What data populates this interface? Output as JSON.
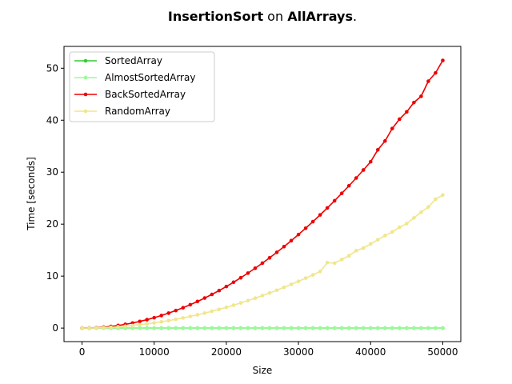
{
  "chart_data": {
    "type": "line",
    "title": {
      "algorithm": "InsertionSort",
      "connector": " on ",
      "dataset": "AllArrays",
      "suffix": "."
    },
    "xlabel": "Size",
    "ylabel": "Time [seconds]",
    "xlim": [
      -2500,
      52500
    ],
    "ylim": [
      -2.6,
      54.2
    ],
    "xticks": [
      0,
      10000,
      20000,
      30000,
      40000,
      50000
    ],
    "yticks": [
      0,
      10,
      20,
      30,
      40,
      50
    ],
    "legend_position": "top-left",
    "x": [
      0,
      1000,
      2000,
      3000,
      4000,
      5000,
      6000,
      7000,
      8000,
      9000,
      10000,
      11000,
      12000,
      13000,
      14000,
      15000,
      16000,
      17000,
      18000,
      19000,
      20000,
      21000,
      22000,
      23000,
      24000,
      25000,
      26000,
      27000,
      28000,
      29000,
      30000,
      31000,
      32000,
      33000,
      34000,
      35000,
      36000,
      37000,
      38000,
      39000,
      40000,
      41000,
      42000,
      43000,
      44000,
      45000,
      46000,
      47000,
      48000,
      49000,
      50000
    ],
    "series": [
      {
        "name": "SortedArray",
        "color": "#33cc33",
        "values": [
          0,
          0,
          0,
          0,
          0,
          0,
          0,
          0,
          0,
          0,
          0,
          0,
          0,
          0,
          0,
          0,
          0,
          0,
          0,
          0,
          0,
          0,
          0,
          0,
          0,
          0,
          0,
          0,
          0,
          0,
          0,
          0,
          0,
          0,
          0,
          0,
          0,
          0,
          0,
          0,
          0,
          0,
          0,
          0,
          0,
          0,
          0,
          0,
          0,
          0,
          0
        ]
      },
      {
        "name": "AlmostSortedArray",
        "color": "#98fb98",
        "values": [
          0,
          0,
          0,
          0,
          0,
          0,
          0,
          0,
          0,
          0,
          0,
          0,
          0,
          0,
          0,
          0,
          0,
          0,
          0,
          0,
          0,
          0,
          0,
          0,
          0,
          0,
          0,
          0,
          0,
          0,
          0,
          0,
          0,
          0,
          0,
          0,
          0,
          0,
          0,
          0,
          0,
          0,
          0,
          0,
          0,
          0,
          0,
          0,
          0,
          0,
          0
        ]
      },
      {
        "name": "BackSortedArray",
        "color": "#ee0000",
        "values": [
          0,
          0.02,
          0.08,
          0.18,
          0.32,
          0.5,
          0.72,
          0.98,
          1.28,
          1.62,
          2.0,
          2.42,
          2.88,
          3.38,
          3.92,
          4.5,
          5.12,
          5.78,
          6.48,
          7.22,
          8.0,
          8.82,
          9.68,
          10.58,
          11.52,
          12.5,
          13.52,
          14.58,
          15.68,
          16.82,
          18.0,
          19.22,
          20.48,
          21.78,
          23.12,
          24.5,
          25.92,
          27.38,
          28.88,
          30.42,
          32.0,
          34.3,
          36.0,
          38.4,
          40.2,
          41.6,
          43.4,
          44.6,
          47.5,
          49.1,
          51.5
        ]
      },
      {
        "name": "RandomArray",
        "color": "#f0e68c",
        "values": [
          0,
          0.01,
          0.04,
          0.09,
          0.16,
          0.25,
          0.36,
          0.49,
          0.64,
          0.81,
          1.0,
          1.21,
          1.44,
          1.69,
          1.96,
          2.25,
          2.56,
          2.89,
          3.24,
          3.61,
          4.0,
          4.41,
          4.84,
          5.29,
          5.76,
          6.25,
          6.76,
          7.29,
          7.84,
          8.41,
          9.0,
          9.61,
          10.24,
          10.89,
          12.6,
          12.5,
          13.2,
          13.9,
          14.9,
          15.4,
          16.2,
          17.0,
          17.8,
          18.5,
          19.4,
          20.1,
          21.2,
          22.3,
          23.3,
          24.8,
          25.6
        ]
      }
    ]
  }
}
